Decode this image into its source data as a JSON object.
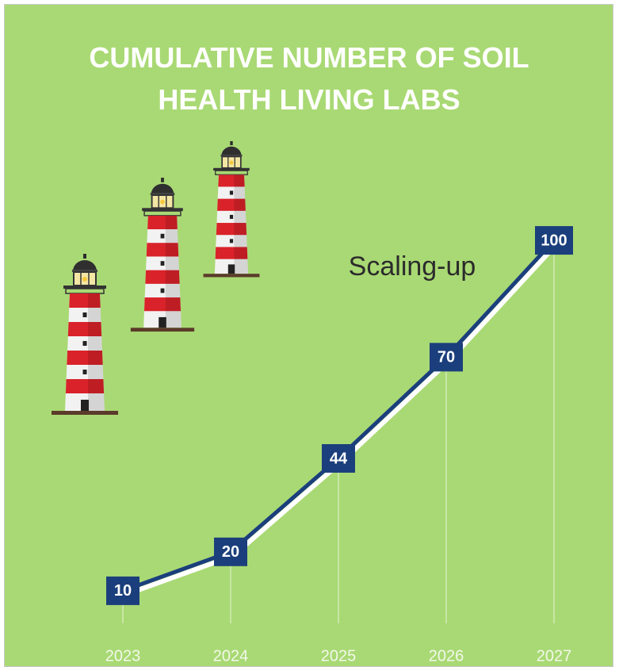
{
  "chart_data": {
    "type": "line",
    "title": "CUMULATIVE NUMBER OF SOIL HEALTH LIVING LABS",
    "annotation": "Scaling-up",
    "categories": [
      "2023",
      "2024",
      "2025",
      "2026",
      "2027"
    ],
    "values": [
      10,
      20,
      44,
      70,
      100
    ],
    "color": "#1b3f7c",
    "ylim": [
      0,
      110
    ]
  }
}
